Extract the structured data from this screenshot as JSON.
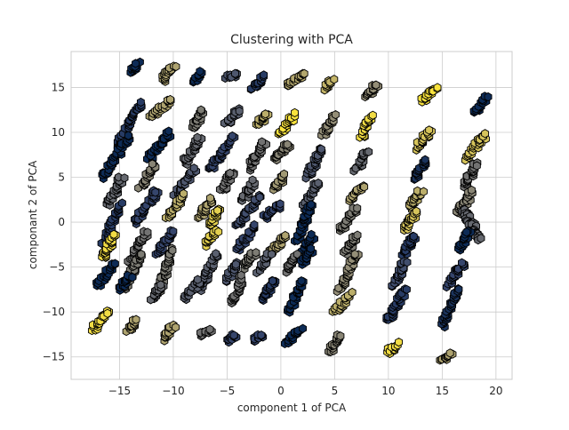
{
  "chart_data": {
    "type": "scatter",
    "title": "Clustering with PCA",
    "xlabel": "component 1 of PCA",
    "ylabel": "componant 2 of PCA",
    "xlim": [
      -19.5,
      21.5
    ],
    "ylim": [
      -17.5,
      19.0
    ],
    "xticks": [
      -15,
      -10,
      -5,
      0,
      5,
      10,
      15,
      20
    ],
    "yticks": [
      -15,
      -10,
      -5,
      0,
      5,
      10,
      15
    ],
    "grid": true,
    "marker": "hexagon",
    "colormap": [
      "#00224e",
      "#35456c",
      "#666970",
      "#948e77",
      "#c8b866",
      "#fee838"
    ],
    "clusters": [
      {
        "name": "c1",
        "x": [
          -13.8,
          -13.3
        ],
        "y": [
          16.7,
          17.7
        ],
        "c": 0.05
      },
      {
        "name": "c2",
        "x": [
          -11.0,
          -10.0
        ],
        "y": [
          15.8,
          17.4
        ],
        "c": 0.7
      },
      {
        "name": "c3",
        "x": [
          -8.1,
          -7.4
        ],
        "y": [
          15.6,
          16.6
        ],
        "c": 0.05
      },
      {
        "name": "c4",
        "x": [
          -4.9,
          -4.1
        ],
        "y": [
          16.1,
          16.4
        ],
        "c": 0.3
      },
      {
        "name": "c5",
        "x": [
          -2.6,
          -1.5
        ],
        "y": [
          15.0,
          16.2
        ],
        "c": 0.15
      },
      {
        "name": "c6",
        "x": [
          0.7,
          2.1
        ],
        "y": [
          15.2,
          16.4
        ],
        "c": 0.72
      },
      {
        "name": "c7",
        "x": [
          4.1,
          4.7
        ],
        "y": [
          14.9,
          15.9
        ],
        "c": 0.78
      },
      {
        "name": "c8",
        "x": [
          8.1,
          8.9
        ],
        "y": [
          14.0,
          15.4
        ],
        "c": 0.6
      },
      {
        "name": "c9",
        "x": [
          13.2,
          14.4
        ],
        "y": [
          13.6,
          14.9
        ],
        "c": 0.98
      },
      {
        "name": "c10",
        "x": [
          18.1,
          19.1
        ],
        "y": [
          12.2,
          13.9
        ],
        "c": 0.05
      },
      {
        "name": "c11",
        "x": [
          -15.2,
          -13.0
        ],
        "y": [
          8.6,
          13.2
        ],
        "c": 0.15
      },
      {
        "name": "c12",
        "x": [
          -12.0,
          -10.2
        ],
        "y": [
          11.8,
          13.6
        ],
        "c": 0.7
      },
      {
        "name": "c13",
        "x": [
          -8.0,
          -7.2
        ],
        "y": [
          10.6,
          12.5
        ],
        "c": 0.5
      },
      {
        "name": "c14",
        "x": [
          -5.0,
          -4.0
        ],
        "y": [
          11.0,
          12.5
        ],
        "c": 0.35
      },
      {
        "name": "c15",
        "x": [
          -2.2,
          -1.2
        ],
        "y": [
          10.8,
          12.2
        ],
        "c": 0.75
      },
      {
        "name": "c16",
        "x": [
          0.0,
          1.2
        ],
        "y": [
          9.8,
          12.0
        ],
        "c": 0.98
      },
      {
        "name": "c17",
        "x": [
          4.0,
          5.0
        ],
        "y": [
          9.8,
          11.8
        ],
        "c": 0.6
      },
      {
        "name": "c18",
        "x": [
          7.5,
          8.4
        ],
        "y": [
          9.6,
          11.8
        ],
        "c": 0.95
      },
      {
        "name": "c19",
        "x": [
          12.5,
          13.9
        ],
        "y": [
          8.2,
          10.2
        ],
        "c": 0.85
      },
      {
        "name": "c20",
        "x": [
          17.2,
          19.0
        ],
        "y": [
          7.0,
          9.8
        ],
        "c": 0.85
      },
      {
        "name": "c21",
        "x": [
          -16.5,
          -14.2
        ],
        "y": [
          5.0,
          9.5
        ],
        "c": 0.05
      },
      {
        "name": "c22",
        "x": [
          -12.3,
          -10.3
        ],
        "y": [
          7.0,
          10.0
        ],
        "c": 0.05
      },
      {
        "name": "c23",
        "x": [
          -9.0,
          -7.5
        ],
        "y": [
          6.5,
          9.5
        ],
        "c": 0.4
      },
      {
        "name": "c24",
        "x": [
          -6.5,
          -4.5
        ],
        "y": [
          6.0,
          9.5
        ],
        "c": 0.2
      },
      {
        "name": "c25",
        "x": [
          -3.0,
          -1.5
        ],
        "y": [
          6.0,
          8.8
        ],
        "c": 0.45
      },
      {
        "name": "c26",
        "x": [
          -0.5,
          0.8
        ],
        "y": [
          7.0,
          8.8
        ],
        "c": 0.55
      },
      {
        "name": "c27",
        "x": [
          2.5,
          3.8
        ],
        "y": [
          5.0,
          8.2
        ],
        "c": 0.3
      },
      {
        "name": "c28",
        "x": [
          7.0,
          8.0
        ],
        "y": [
          5.8,
          8.0
        ],
        "c": 0.4
      },
      {
        "name": "c29",
        "x": [
          12.5,
          13.5
        ],
        "y": [
          4.8,
          7.0
        ],
        "c": 0.1
      },
      {
        "name": "c30",
        "x": [
          17.0,
          18.2
        ],
        "y": [
          4.0,
          6.5
        ],
        "c": 0.45
      },
      {
        "name": "c31",
        "x": [
          -16.0,
          -14.8
        ],
        "y": [
          2.0,
          5.0
        ],
        "c": 0.4
      },
      {
        "name": "c32",
        "x": [
          -13.0,
          -11.7
        ],
        "y": [
          4.0,
          6.5
        ],
        "c": 0.55
      },
      {
        "name": "c33",
        "x": [
          -9.8,
          -8.0
        ],
        "y": [
          3.0,
          6.0
        ],
        "c": 0.3
      },
      {
        "name": "c34",
        "x": [
          -5.5,
          -4.5
        ],
        "y": [
          3.5,
          5.5
        ],
        "c": 0.45
      },
      {
        "name": "c35",
        "x": [
          -3.5,
          -2.5
        ],
        "y": [
          2.5,
          4.5
        ],
        "c": 0.4
      },
      {
        "name": "c36",
        "x": [
          -0.5,
          0.3
        ],
        "y": [
          3.8,
          5.2
        ],
        "c": 0.65
      },
      {
        "name": "c37",
        "x": [
          2.0,
          3.5
        ],
        "y": [
          1.5,
          4.5
        ],
        "c": 0.35
      },
      {
        "name": "c38",
        "x": [
          6.5,
          7.6
        ],
        "y": [
          2.5,
          4.0
        ],
        "c": 0.7
      },
      {
        "name": "c39",
        "x": [
          12.0,
          13.0
        ],
        "y": [
          1.5,
          3.5
        ],
        "c": 0.75
      },
      {
        "name": "c40",
        "x": [
          16.5,
          17.8
        ],
        "y": [
          1.0,
          3.5
        ],
        "c": 0.55
      },
      {
        "name": "c41",
        "x": [
          -16.5,
          -15.0
        ],
        "y": [
          -2.5,
          2.0
        ],
        "c": 0.15
      },
      {
        "name": "c42",
        "x": [
          -13.5,
          -11.5
        ],
        "y": [
          0.0,
          3.5
        ],
        "c": 0.2
      },
      {
        "name": "c43",
        "x": [
          -10.5,
          -9.0
        ],
        "y": [
          0.5,
          3.0
        ],
        "c": 0.75
      },
      {
        "name": "c44",
        "x": [
          -7.5,
          -6.5
        ],
        "y": [
          0.5,
          2.5
        ],
        "c": 0.7
      },
      {
        "name": "c45",
        "x": [
          -6.5,
          -5.8
        ],
        "y": [
          -0.5,
          1.5
        ],
        "c": 0.9
      },
      {
        "name": "c46",
        "x": [
          -4.0,
          -2.0
        ],
        "y": [
          -0.5,
          3.0
        ],
        "c": 0.25
      },
      {
        "name": "c47",
        "x": [
          -1.5,
          0.0
        ],
        "y": [
          0.5,
          2.0
        ],
        "c": 0.2
      },
      {
        "name": "c48",
        "x": [
          1.5,
          2.8
        ],
        "y": [
          -2.0,
          2.0
        ],
        "c": 0.05
      },
      {
        "name": "c49",
        "x": [
          5.5,
          7.0
        ],
        "y": [
          -1.0,
          1.5
        ],
        "c": 0.5
      },
      {
        "name": "c50",
        "x": [
          11.5,
          12.5
        ],
        "y": [
          -1.0,
          1.0
        ],
        "c": 0.85
      },
      {
        "name": "c51",
        "x": [
          17.0,
          18.5
        ],
        "y": [
          1.5,
          -2.0
        ],
        "c": 0.4
      },
      {
        "name": "c52",
        "x": [
          -16.5,
          -15.5
        ],
        "y": [
          -4.0,
          -1.5
        ],
        "c": 0.95
      },
      {
        "name": "c53",
        "x": [
          -14.0,
          -12.5
        ],
        "y": [
          -4.5,
          -1.0
        ],
        "c": 0.45
      },
      {
        "name": "c54",
        "x": [
          -11.5,
          -10.0
        ],
        "y": [
          -3.5,
          -1.0
        ],
        "c": 0.2
      },
      {
        "name": "c55",
        "x": [
          -7.0,
          -6.0
        ],
        "y": [
          -2.5,
          -1.0
        ],
        "c": 0.9
      },
      {
        "name": "c56",
        "x": [
          -4.0,
          -2.5
        ],
        "y": [
          -3.0,
          -0.5
        ],
        "c": 0.2
      },
      {
        "name": "c57",
        "x": [
          -1.0,
          0.5
        ],
        "y": [
          -3.5,
          -1.5
        ],
        "c": 0.7
      },
      {
        "name": "c58",
        "x": [
          2.0,
          3.0
        ],
        "y": [
          -3.5,
          -1.5
        ],
        "c": 0.05
      },
      {
        "name": "c59",
        "x": [
          6.0,
          7.0
        ],
        "y": [
          -3.5,
          -1.5
        ],
        "c": 0.5
      },
      {
        "name": "c60",
        "x": [
          11.5,
          12.5
        ],
        "y": [
          -3.5,
          -1.5
        ],
        "c": 0.15
      },
      {
        "name": "c61",
        "x": [
          16.5,
          17.5
        ],
        "y": [
          -3.0,
          -1.0
        ],
        "c": 0.05
      },
      {
        "name": "c62",
        "x": [
          -17.0,
          -15.5
        ],
        "y": [
          -7.0,
          -4.5
        ],
        "c": 0.05
      },
      {
        "name": "c63",
        "x": [
          -14.5,
          -13.0
        ],
        "y": [
          -7.5,
          -3.5
        ],
        "c": 0.5
      },
      {
        "name": "c64",
        "x": [
          -11.5,
          -10.0
        ],
        "y": [
          -8.0,
          -3.0
        ],
        "c": 0.5
      },
      {
        "name": "c65",
        "x": [
          -7.5,
          -6.0
        ],
        "y": [
          -7.5,
          -3.5
        ],
        "c": 0.35
      },
      {
        "name": "c66",
        "x": [
          -5.0,
          -4.0
        ],
        "y": [
          -6.5,
          -4.5
        ],
        "c": 0.3
      },
      {
        "name": "c67",
        "x": [
          -3.5,
          -2.5
        ],
        "y": [
          -5.0,
          -3.5
        ],
        "c": 0.5
      },
      {
        "name": "c68",
        "x": [
          -2.0,
          -1.0
        ],
        "y": [
          -5.5,
          -3.5
        ],
        "c": 0.35
      },
      {
        "name": "c69",
        "x": [
          0.5,
          1.5
        ],
        "y": [
          -5.5,
          -3.5
        ],
        "c": 0.45
      },
      {
        "name": "c70",
        "x": [
          2.0,
          3.0
        ],
        "y": [
          -4.5,
          -3.0
        ],
        "c": 0.05
      },
      {
        "name": "c71",
        "x": [
          5.5,
          7.0
        ],
        "y": [
          -7.5,
          -3.5
        ],
        "c": 0.6
      },
      {
        "name": "c72",
        "x": [
          10.5,
          11.5
        ],
        "y": [
          -7.0,
          -4.5
        ],
        "c": 0.25
      },
      {
        "name": "c73",
        "x": [
          15.5,
          17.0
        ],
        "y": [
          -7.0,
          -4.5
        ],
        "c": 0.2
      },
      {
        "name": "c74",
        "x": [
          -15.0,
          -14.0
        ],
        "y": [
          -7.5,
          -6.0
        ],
        "c": 0.05
      },
      {
        "name": "c75",
        "x": [
          -12.0,
          -11.0
        ],
        "y": [
          -8.5,
          -7.0
        ],
        "c": 0.4
      },
      {
        "name": "c76",
        "x": [
          -9.0,
          -7.5
        ],
        "y": [
          -8.5,
          -6.5
        ],
        "c": 0.35
      },
      {
        "name": "c77",
        "x": [
          -4.5,
          -3.5
        ],
        "y": [
          -9.0,
          -6.0
        ],
        "c": 0.45
      },
      {
        "name": "c78",
        "x": [
          -1.5,
          -0.5
        ],
        "y": [
          -8.5,
          -6.5
        ],
        "c": 0.15
      },
      {
        "name": "c79",
        "x": [
          0.8,
          2.0
        ],
        "y": [
          -10.0,
          -6.5
        ],
        "c": 0.05
      },
      {
        "name": "c80",
        "x": [
          5.0,
          6.5
        ],
        "y": [
          -10.0,
          -8.0
        ],
        "c": 0.75
      },
      {
        "name": "c81",
        "x": [
          10.0,
          11.5
        ],
        "y": [
          -11.0,
          -7.5
        ],
        "c": 0.15
      },
      {
        "name": "c82",
        "x": [
          15.0,
          16.5
        ],
        "y": [
          -11.5,
          -7.5
        ],
        "c": 0.1
      },
      {
        "name": "c83",
        "x": [
          -17.5,
          -16.0
        ],
        "y": [
          -12.0,
          -10.0
        ],
        "c": 0.95
      },
      {
        "name": "c84",
        "x": [
          -14.2,
          -13.5
        ],
        "y": [
          -12.0,
          -11.0
        ],
        "c": 0.7
      },
      {
        "name": "c85",
        "x": [
          -10.8,
          -10.0
        ],
        "y": [
          -13.0,
          -11.5
        ],
        "c": 0.7
      },
      {
        "name": "c86",
        "x": [
          -7.5,
          -6.5
        ],
        "y": [
          -12.5,
          -12.0
        ],
        "c": 0.45
      },
      {
        "name": "c87",
        "x": [
          -4.8,
          -4.2
        ],
        "y": [
          -13.2,
          -12.5
        ],
        "c": 0.2
      },
      {
        "name": "c88",
        "x": [
          -2.5,
          -1.8
        ],
        "y": [
          -13.2,
          -12.5
        ],
        "c": 0.2
      },
      {
        "name": "c89",
        "x": [
          0.5,
          1.8
        ],
        "y": [
          -13.5,
          -12.0
        ],
        "c": 0.05
      },
      {
        "name": "c90",
        "x": [
          4.5,
          5.5
        ],
        "y": [
          -14.5,
          -12.5
        ],
        "c": 0.55
      },
      {
        "name": "c91",
        "x": [
          10.0,
          10.8
        ],
        "y": [
          -14.5,
          -13.5
        ],
        "c": 0.95
      },
      {
        "name": "c92",
        "x": [
          15.0,
          16.0
        ],
        "y": [
          -15.3,
          -14.7
        ],
        "c": 0.7
      }
    ]
  }
}
